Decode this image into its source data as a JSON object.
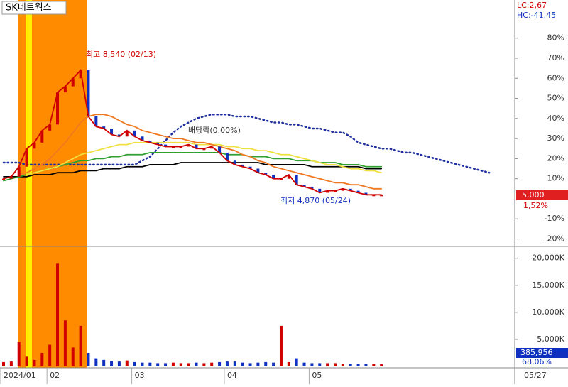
{
  "chart_data": {
    "type": "stock",
    "title": "SK네트웍스",
    "lc_label": "LC:2,67",
    "hc_label": "HC:-41,45",
    "categories": [
      "2024/01",
      null,
      null,
      null,
      null,
      null,
      "02",
      null,
      null,
      null,
      null,
      null,
      null,
      null,
      null,
      null,
      null,
      "03",
      null,
      null,
      null,
      null,
      null,
      null,
      null,
      null,
      null,
      null,
      null,
      "04",
      null,
      null,
      null,
      null,
      null,
      null,
      null,
      null,
      null,
      null,
      "05",
      null,
      null,
      null,
      null,
      null,
      null,
      null,
      null,
      null,
      null,
      null,
      null,
      null,
      null,
      null,
      null,
      null,
      null,
      null,
      null,
      null,
      null,
      null
    ],
    "cursor_date": "05/27",
    "ylim": [
      -23,
      99
    ],
    "yticks": [
      {
        "value": -20,
        "label": "-20%"
      },
      {
        "value": -10,
        "label": "-10%"
      },
      {
        "value": 10,
        "label": "10%"
      },
      {
        "value": 20,
        "label": "20%"
      },
      {
        "value": 30,
        "label": "30%"
      },
      {
        "value": 40,
        "label": "40%"
      },
      {
        "value": 50,
        "label": "50%"
      },
      {
        "value": 60,
        "label": "60%"
      },
      {
        "value": 70,
        "label": "70%"
      },
      {
        "value": 80,
        "label": "80%"
      }
    ],
    "series": [
      {
        "name": "price",
        "color": "#d00000",
        "values": [
          10,
          11,
          16,
          25,
          28,
          34,
          37,
          53,
          56,
          60,
          64,
          41,
          36,
          35,
          32,
          31,
          34,
          31,
          29,
          28,
          27,
          26,
          26,
          26,
          27,
          25,
          25,
          26,
          23,
          19,
          17,
          16,
          15,
          13,
          12,
          10,
          10,
          12,
          7,
          6,
          5,
          3,
          4,
          4,
          5,
          4,
          3,
          2,
          2,
          2,
          null,
          null,
          null,
          null,
          null,
          null,
          null,
          null,
          null,
          null,
          null,
          null,
          null,
          null
        ]
      },
      {
        "name": "ma-orange",
        "color": "#f07820",
        "values": [
          null,
          null,
          12,
          13,
          15,
          17,
          20,
          24,
          28,
          33,
          38,
          41,
          42,
          42,
          41,
          39,
          37,
          36,
          34,
          33,
          32,
          31,
          30,
          30,
          29,
          28,
          28,
          27,
          26,
          25,
          24,
          22,
          21,
          19,
          18,
          16,
          15,
          14,
          13,
          12,
          11,
          10,
          9,
          8,
          8,
          7,
          7,
          6,
          5,
          5,
          null,
          null,
          null,
          null,
          null,
          null,
          null,
          null,
          null,
          null,
          null,
          null,
          null,
          null
        ]
      },
      {
        "name": "ma-yellow",
        "color": "#f0e040",
        "values": [
          null,
          null,
          null,
          12,
          13,
          14,
          15,
          16,
          18,
          20,
          22,
          23,
          24,
          25,
          26,
          27,
          27,
          28,
          28,
          28,
          28,
          28,
          28,
          28,
          28,
          27,
          27,
          27,
          27,
          26,
          26,
          25,
          25,
          24,
          24,
          23,
          22,
          22,
          21,
          20,
          19,
          18,
          17,
          17,
          16,
          15,
          15,
          14,
          14,
          13,
          null,
          null,
          null,
          null,
          null,
          null,
          null,
          null,
          null,
          null,
          null,
          null,
          null,
          null
        ]
      },
      {
        "name": "ma-green",
        "color": "#30a030",
        "values": [
          9,
          10,
          11,
          12,
          13,
          14,
          15,
          16,
          17,
          18,
          19,
          19,
          20,
          20,
          21,
          21,
          22,
          22,
          22,
          23,
          23,
          23,
          23,
          23,
          23,
          23,
          23,
          23,
          23,
          22,
          22,
          22,
          21,
          21,
          21,
          20,
          20,
          20,
          19,
          19,
          19,
          18,
          18,
          18,
          17,
          17,
          17,
          16,
          16,
          16,
          null,
          null,
          null,
          null,
          null,
          null,
          null,
          null,
          null,
          null,
          null,
          null,
          null,
          null
        ]
      },
      {
        "name": "ma-black",
        "color": "#000000",
        "values": [
          11,
          11,
          11,
          11,
          12,
          12,
          12,
          13,
          13,
          13,
          14,
          14,
          14,
          15,
          15,
          15,
          16,
          16,
          16,
          17,
          17,
          17,
          17,
          18,
          18,
          18,
          18,
          18,
          18,
          18,
          18,
          18,
          18,
          18,
          17,
          17,
          17,
          17,
          17,
          17,
          16,
          16,
          16,
          16,
          16,
          16,
          16,
          15,
          15,
          15,
          null,
          null,
          null,
          null,
          null,
          null,
          null,
          null,
          null,
          null,
          null,
          null,
          null,
          null
        ]
      },
      {
        "name": "leading-span",
        "color": "#2030a0",
        "dotted": true,
        "values": [
          18,
          18,
          18,
          17,
          17,
          17,
          17,
          17,
          17,
          17,
          17,
          17,
          17,
          17,
          17,
          17,
          17,
          17,
          19,
          21,
          25,
          29,
          33,
          36,
          38,
          40,
          41,
          42,
          42,
          42,
          41,
          41,
          41,
          40,
          39,
          38,
          38,
          37,
          37,
          36,
          35,
          35,
          34,
          33,
          33,
          31,
          28,
          27,
          26,
          25,
          25,
          24,
          23,
          23,
          22,
          21,
          20,
          19,
          18,
          17,
          16,
          15,
          14,
          13
        ]
      }
    ],
    "volume": {
      "ylim": [
        0,
        21800
      ],
      "yticks": [
        {
          "value": 5000,
          "label": "5,000K"
        },
        {
          "value": 10000,
          "label": "10,000K"
        },
        {
          "value": 15000,
          "label": "15,000K"
        },
        {
          "value": 20000,
          "label": "20,000K"
        }
      ],
      "values": [
        800,
        900,
        4500,
        1800,
        1200,
        2500,
        4000,
        19000,
        8500,
        3500,
        7500,
        2500,
        1500,
        1200,
        1000,
        900,
        1100,
        800,
        700,
        700,
        600,
        600,
        700,
        600,
        600,
        700,
        600,
        700,
        800,
        900,
        900,
        700,
        600,
        700,
        800,
        700,
        7500,
        800,
        1500,
        700,
        600,
        600,
        600,
        600,
        500,
        500,
        500,
        500,
        500,
        386,
        null,
        null,
        null,
        null,
        null,
        null,
        null,
        null,
        null,
        null,
        null,
        null,
        null,
        null
      ],
      "up_color": "#d00000",
      "down_color": "#1030c0"
    },
    "annotations": {
      "high": "최고 8,540 (02/13)",
      "dividend": "배당락(0,00%)",
      "low": "최저 4,870 (05/24)"
    },
    "tags": {
      "price": "5,000",
      "change": "1,52%",
      "volume": "385,956",
      "volume_pct": "68,06%"
    }
  }
}
